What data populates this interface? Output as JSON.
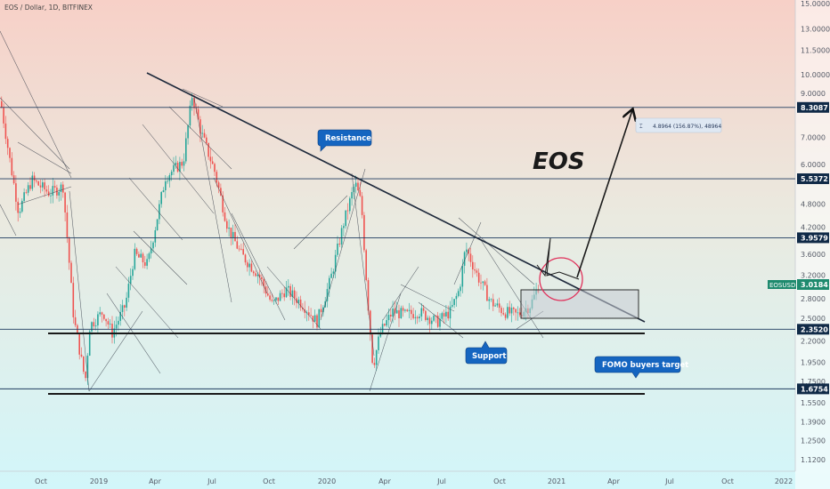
{
  "chart_data": {
    "type": "candlestick",
    "title": "EOS / Dollar, 1D, BITFINEX",
    "symbol_label": "EOSUSD",
    "current_price": "3.0184",
    "y_scale": "log",
    "ylim": [
      1.05,
      15.5
    ],
    "y_ticks": [
      "15.0000",
      "13.0000",
      "11.5000",
      "10.0000",
      "9.0000",
      "7.0000",
      "6.0000",
      "4.8000",
      "4.2000",
      "3.6000",
      "3.2000",
      "2.8000",
      "2.5000",
      "2.2000",
      "1.9500",
      "1.7500",
      "1.5500",
      "1.3900",
      "1.2500",
      "1.1200"
    ],
    "x_ticks": [
      "Oct",
      "2019",
      "Apr",
      "Jul",
      "Oct",
      "2020",
      "Apr",
      "Jul",
      "Oct",
      "2021",
      "Apr",
      "Jul",
      "Oct",
      "2022"
    ],
    "levels": [
      {
        "value": 8.3087,
        "label": "8.3087"
      },
      {
        "value": 5.5372,
        "label": "5.5372"
      },
      {
        "value": 3.9579,
        "label": "3.9579"
      },
      {
        "value": 2.352,
        "label": "2.3520"
      },
      {
        "value": 1.6754,
        "label": "1.6754"
      }
    ],
    "annotations": {
      "resistance": "Resistance",
      "support": "Support",
      "fomo": "FOMO buyers target",
      "eos": "EOS",
      "measure": "4.8964 (156.87%), 48964"
    },
    "colors": {
      "up": "#26a69a",
      "down": "#ef5350",
      "line": "#1f2a3c",
      "level": "#1e3a5f",
      "callout": "#1565c0",
      "circle": "#e0305a",
      "bg_top": "#f7d4cc",
      "bg_bottom": "#d6f5f7"
    }
  }
}
